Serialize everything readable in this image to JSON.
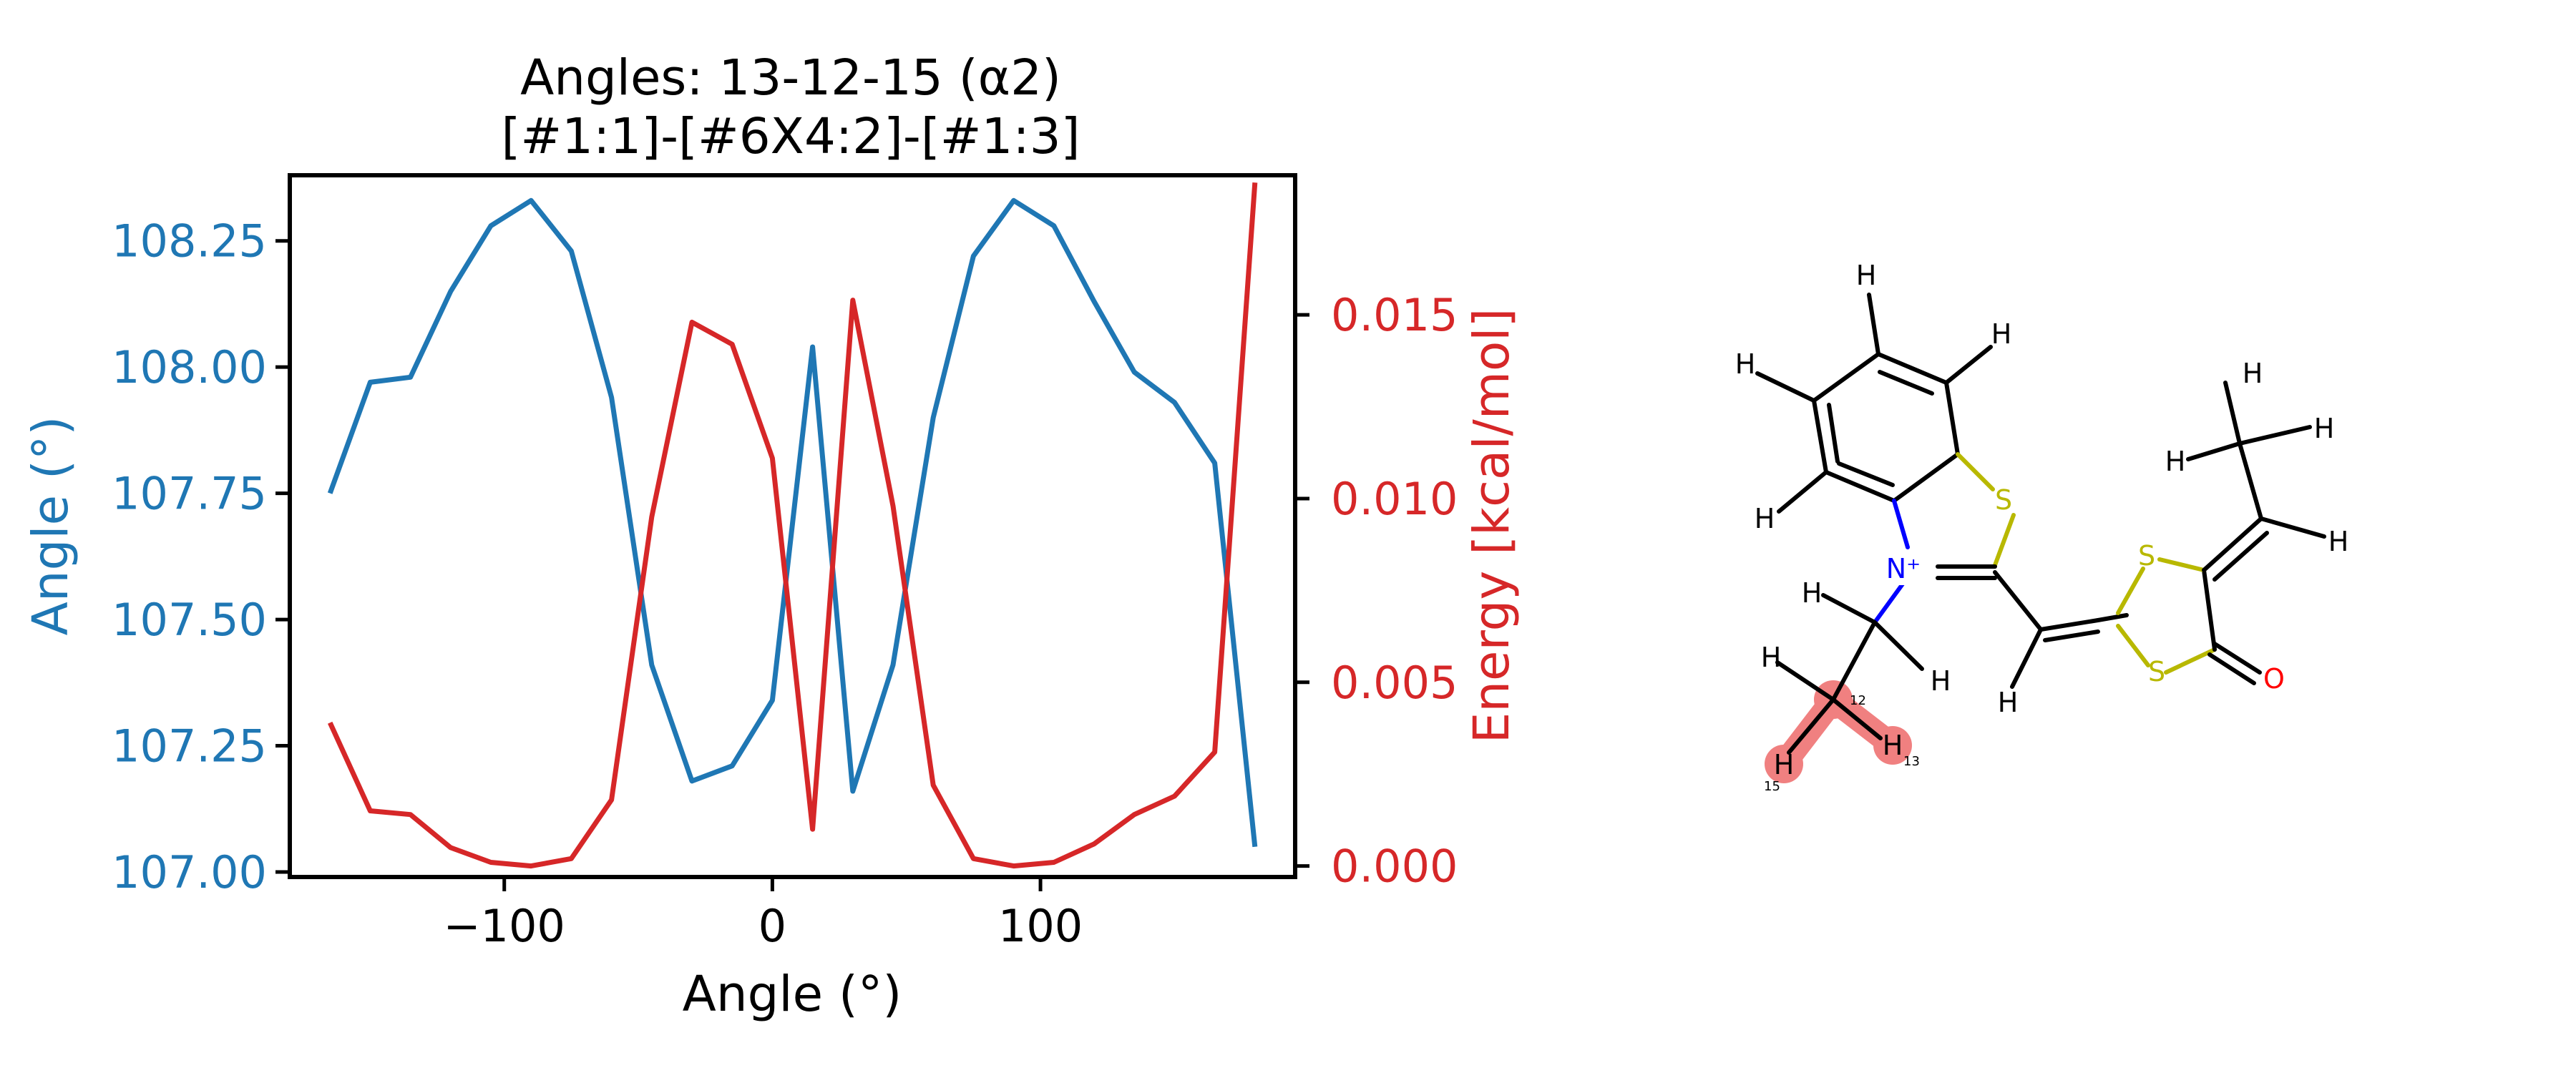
{
  "chart_data": {
    "type": "line",
    "title": "Angles: 13-12-15 (α2)",
    "subtitle": "[#1:1]-[#6X4:2]-[#1:3]",
    "xlabel": "Angle (°)",
    "ylabel_left": "Angle (°)",
    "ylabel_right": "Energy [kcal/mol]",
    "xlim": [
      -180,
      195
    ],
    "ylim_left": [
      106.99,
      108.38
    ],
    "ylim_right": [
      -0.0003,
      0.0188
    ],
    "x_ticks": [
      -100,
      0,
      100
    ],
    "x_tick_labels": [
      "−100",
      "0",
      "100"
    ],
    "y_left_ticks": [
      107.0,
      107.25,
      107.5,
      107.75,
      108.0,
      108.25
    ],
    "y_left_tick_labels": [
      "107.00",
      "107.25",
      "107.50",
      "107.75",
      "108.00",
      "108.25"
    ],
    "y_right_ticks": [
      0.0,
      0.005,
      0.01,
      0.015
    ],
    "y_right_tick_labels": [
      "0.000",
      "0.005",
      "0.010",
      "0.015"
    ],
    "grid": false,
    "series": [
      {
        "axis": "left",
        "color": "#1f77b4",
        "x": [
          -165,
          -150,
          -135,
          -120,
          -105,
          -90,
          -75,
          -60,
          -45,
          -30,
          -15,
          0,
          15,
          30,
          45,
          60,
          75,
          90,
          105,
          120,
          135,
          150,
          165,
          180
        ],
        "values": [
          107.75,
          107.97,
          107.98,
          108.15,
          108.28,
          108.33,
          108.23,
          107.94,
          107.41,
          107.18,
          107.21,
          107.34,
          108.04,
          107.16,
          107.41,
          107.9,
          108.22,
          108.33,
          108.28,
          108.13,
          107.99,
          107.93,
          107.81,
          107.05
        ]
      },
      {
        "axis": "right",
        "color": "#d62728",
        "x": [
          -165,
          -150,
          -135,
          -120,
          -105,
          -90,
          -75,
          -60,
          -45,
          -30,
          -15,
          0,
          15,
          30,
          45,
          60,
          75,
          90,
          105,
          120,
          135,
          150,
          165,
          180
        ],
        "values": [
          0.0039,
          0.0015,
          0.0014,
          0.0005,
          0.0001,
          0.0,
          0.0002,
          0.0018,
          0.0095,
          0.0148,
          0.0142,
          0.0111,
          0.001,
          0.0154,
          0.0098,
          0.0022,
          0.0002,
          0.0,
          0.0001,
          0.0006,
          0.0014,
          0.0019,
          0.0031,
          0.0186
        ]
      }
    ]
  },
  "molecule": {
    "atoms": [
      {
        "label": "N⁺",
        "color": "#0000ff"
      },
      {
        "label": "S",
        "color": "#b8b800"
      },
      {
        "label": "S",
        "color": "#b8b800"
      },
      {
        "label": "S",
        "color": "#b8b800"
      },
      {
        "label": "O",
        "color": "#ff0000"
      },
      {
        "label": "H",
        "color": "#000000"
      }
    ],
    "atom_indices": [
      "12",
      "13",
      "15"
    ],
    "highlight_color": "#f08080"
  }
}
